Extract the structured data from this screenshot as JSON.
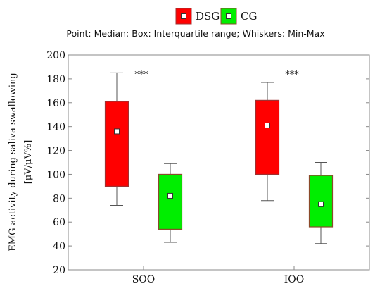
{
  "chart_data": {
    "type": "box",
    "subtitle": "Point: Median; Box: Interquartile range; Whiskers: Min-Max",
    "ylabel_line1": "EMG activity during saliva swallowing",
    "ylabel_line2": "[μV/μV%]",
    "ylim": [
      20,
      200
    ],
    "yticks": [
      20,
      40,
      60,
      80,
      100,
      120,
      140,
      160,
      180,
      200
    ],
    "grid": false,
    "legend_position": "top-center",
    "categories": [
      "SOO",
      "IOO"
    ],
    "series": [
      {
        "name": "DSG",
        "color": "#ff0000",
        "border_color": "#a03030",
        "boxes": [
          {
            "category": "SOO",
            "min": 74,
            "q1": 90,
            "median": 136,
            "q3": 161,
            "max": 185
          },
          {
            "category": "IOO",
            "min": 78,
            "q1": 100,
            "median": 141,
            "q3": 162,
            "max": 177
          }
        ]
      },
      {
        "name": "CG",
        "color": "#00ee00",
        "border_color": "#8a4a2a",
        "boxes": [
          {
            "category": "SOO",
            "min": 43,
            "q1": 54,
            "median": 82,
            "q3": 100,
            "max": 109
          },
          {
            "category": "IOO",
            "min": 42,
            "q1": 56,
            "median": 75,
            "q3": 99,
            "max": 110
          }
        ]
      }
    ],
    "annotations": [
      {
        "category": "SOO",
        "text": "***",
        "y": 187
      },
      {
        "category": "IOO",
        "text": "***",
        "y": 187
      }
    ]
  }
}
